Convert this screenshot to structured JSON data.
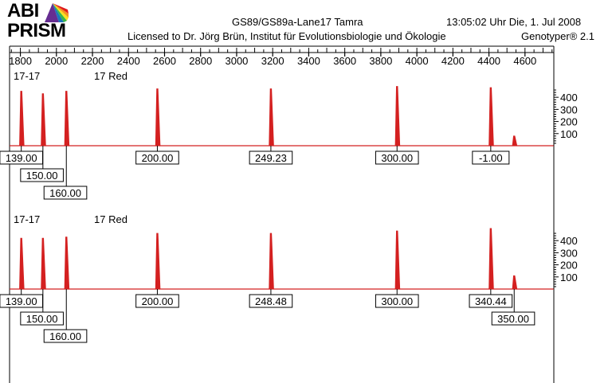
{
  "header": {
    "logo_line1": "ABI",
    "logo_line2": "PRISM",
    "run_name": "GS89/GS89a-Lane17  Tamra",
    "timestamp": "13:05:02  Uhr  Die,  1.  Jul  2008",
    "license": "Licensed to Dr. Jörg Brün, Institut für Evolutionsbiologie und Ökologie",
    "software": "Genotyper® 2.1"
  },
  "colors": {
    "trace": "#d42020",
    "text": "#000000",
    "logo_rainbow": [
      "#e01c1c",
      "#f7941d",
      "#f9e11e",
      "#39b54a",
      "#1c75bc",
      "#662d91"
    ]
  },
  "chart_data": [
    {
      "type": "line",
      "panel_label": "17-17",
      "dye_label": "17 Red",
      "x_axis": {
        "range": [
          1740,
          4760
        ],
        "ticks": [
          1800,
          2000,
          2200,
          2400,
          2600,
          2800,
          3000,
          3200,
          3400,
          3600,
          3800,
          4000,
          4200,
          4400,
          4600
        ],
        "minor_step": 50
      },
      "y_axis": {
        "range": [
          0,
          480
        ],
        "ticks": [
          100,
          200,
          300,
          400
        ],
        "side": "right"
      },
      "peaks": [
        {
          "x": 1805,
          "height": 450,
          "label": "139.00",
          "label_row": 0
        },
        {
          "x": 1925,
          "height": 430,
          "label": "150.00",
          "label_row": 1
        },
        {
          "x": 2055,
          "height": 450,
          "label": "160.00",
          "label_row": 2
        },
        {
          "x": 2560,
          "height": 470,
          "label": "200.00",
          "label_row": 0
        },
        {
          "x": 3190,
          "height": 470,
          "label": "249.23",
          "label_row": 0
        },
        {
          "x": 3890,
          "height": 490,
          "label": "300.00",
          "label_row": 0
        },
        {
          "x": 4410,
          "height": 480,
          "label": "-1.00",
          "label_row": 0
        },
        {
          "x": 4540,
          "height": 80,
          "label": "",
          "label_row": -1
        }
      ]
    },
    {
      "type": "line",
      "panel_label": "17-17",
      "dye_label": "17 Red",
      "x_axis": {
        "range": [
          1740,
          4760
        ],
        "ticks": [],
        "minor_step": 50
      },
      "y_axis": {
        "range": [
          0,
          480
        ],
        "ticks": [
          100,
          200,
          300,
          400
        ],
        "side": "right"
      },
      "peaks": [
        {
          "x": 1805,
          "height": 420,
          "label": "139.00",
          "label_row": 0
        },
        {
          "x": 1925,
          "height": 420,
          "label": "150.00",
          "label_row": 1
        },
        {
          "x": 2055,
          "height": 430,
          "label": "160.00",
          "label_row": 2
        },
        {
          "x": 2560,
          "height": 460,
          "label": "200.00",
          "label_row": 0
        },
        {
          "x": 3190,
          "height": 460,
          "label": "248.48",
          "label_row": 0
        },
        {
          "x": 3890,
          "height": 480,
          "label": "300.00",
          "label_row": 0
        },
        {
          "x": 4410,
          "height": 500,
          "label": "340.44",
          "label_row": 0
        },
        {
          "x": 4540,
          "height": 110,
          "label": "350.00",
          "label_row": 1
        }
      ]
    }
  ]
}
